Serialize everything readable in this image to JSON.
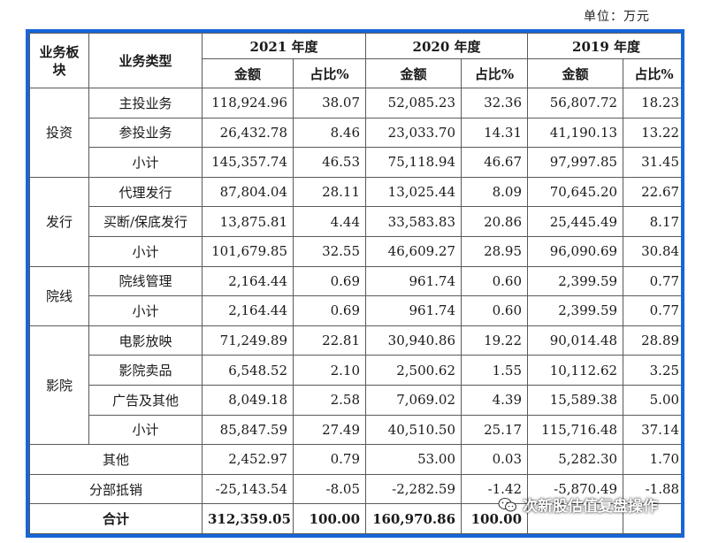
{
  "unit_label": "单位：万元",
  "header": {
    "segment": "业务板块",
    "type": "业务类型",
    "years": [
      "2021 年度",
      "2020 年度",
      "2019 年度"
    ],
    "amount": "金额",
    "ratio": "占比%"
  },
  "sections": [
    {
      "name": "投资",
      "rows": [
        {
          "type": "主投业务",
          "v": [
            "118,924.96",
            "38.07",
            "52,085.23",
            "32.36",
            "56,807.72",
            "18.23"
          ]
        },
        {
          "type": "参投业务",
          "v": [
            "26,432.78",
            "8.46",
            "23,033.70",
            "14.31",
            "41,190.13",
            "13.22"
          ]
        },
        {
          "type": "小计",
          "v": [
            "145,357.74",
            "46.53",
            "75,118.94",
            "46.67",
            "97,997.85",
            "31.45"
          ]
        }
      ]
    },
    {
      "name": "发行",
      "rows": [
        {
          "type": "代理发行",
          "v": [
            "87,804.04",
            "28.11",
            "13,025.44",
            "8.09",
            "70,645.20",
            "22.67"
          ]
        },
        {
          "type": "买断/保底发行",
          "v": [
            "13,875.81",
            "4.44",
            "33,583.83",
            "20.86",
            "25,445.49",
            "8.17"
          ]
        },
        {
          "type": "小计",
          "v": [
            "101,679.85",
            "32.55",
            "46,609.27",
            "28.95",
            "96,090.69",
            "30.84"
          ]
        }
      ]
    },
    {
      "name": "院线",
      "rows": [
        {
          "type": "院线管理",
          "v": [
            "2,164.44",
            "0.69",
            "961.74",
            "0.60",
            "2,399.59",
            "0.77"
          ]
        },
        {
          "type": "小计",
          "v": [
            "2,164.44",
            "0.69",
            "961.74",
            "0.60",
            "2,399.59",
            "0.77"
          ]
        }
      ]
    },
    {
      "name": "影院",
      "rows": [
        {
          "type": "电影放映",
          "v": [
            "71,249.89",
            "22.81",
            "30,940.86",
            "19.22",
            "90,014.48",
            "28.89"
          ]
        },
        {
          "type": "影院卖品",
          "v": [
            "6,548.52",
            "2.10",
            "2,500.62",
            "1.55",
            "10,112.62",
            "3.25"
          ]
        },
        {
          "type": "广告及其他",
          "v": [
            "8,049.18",
            "2.58",
            "7,069.02",
            "4.39",
            "15,589.38",
            "5.00"
          ]
        },
        {
          "type": "小计",
          "v": [
            "85,847.59",
            "27.49",
            "40,510.50",
            "25.17",
            "115,716.48",
            "37.14"
          ]
        }
      ]
    }
  ],
  "other": {
    "label": "其他",
    "v": [
      "2,452.97",
      "0.79",
      "53.00",
      "0.03",
      "5,282.30",
      "1.70"
    ]
  },
  "elimination": {
    "label": "分部抵销",
    "v": [
      "-25,143.54",
      "-8.05",
      "-2,282.59",
      "-1.42",
      "-5,870.49",
      "-1.88"
    ]
  },
  "total": {
    "label": "合计",
    "v": [
      "312,359.05",
      "100.00",
      "160,970.86",
      "100.00",
      "",
      ""
    ]
  },
  "watermark": {
    "text": "次新股估值复盘操作",
    "icon": "wechat-icon"
  }
}
